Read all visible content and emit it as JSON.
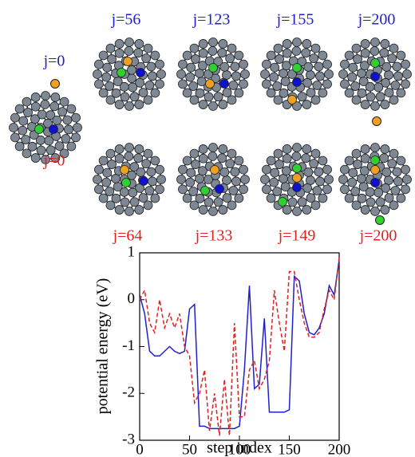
{
  "labels": {
    "top": [
      "j=0",
      "j=56",
      "j=123",
      "j=155",
      "j=200"
    ],
    "bottom": [
      "j=0",
      "j=64",
      "j=133",
      "j=149",
      "j=200"
    ]
  },
  "chart_data": {
    "type": "line",
    "xlabel": "step index",
    "ylabel": "potential energy (eV)",
    "x": [
      0,
      5,
      10,
      15,
      20,
      25,
      30,
      35,
      40,
      45,
      50,
      55,
      60,
      65,
      70,
      75,
      80,
      85,
      90,
      95,
      100,
      105,
      110,
      115,
      120,
      125,
      130,
      135,
      140,
      145,
      150,
      155,
      160,
      165,
      170,
      175,
      180,
      185,
      190,
      195,
      200
    ],
    "series": [
      {
        "color": "#1f1fd0",
        "dash": false,
        "values": [
          0.1,
          -0.3,
          -1.1,
          -1.2,
          -1.2,
          -1.1,
          -1.0,
          -1.1,
          -1.15,
          -1.1,
          -0.2,
          -0.1,
          -2.7,
          -2.7,
          -2.75,
          -2.75,
          -2.75,
          -2.75,
          -2.75,
          -2.75,
          -2.7,
          -1.5,
          0.3,
          -1.9,
          -1.8,
          -0.4,
          -2.4,
          -2.4,
          -2.4,
          -2.4,
          -2.35,
          0.5,
          0.4,
          -0.3,
          -0.7,
          -0.75,
          -0.6,
          -0.3,
          0.3,
          0.1,
          0.85
        ]
      },
      {
        "color": "#e02020",
        "dash": true,
        "values": [
          0,
          0.2,
          -0.5,
          -0.7,
          0.0,
          -0.6,
          -0.3,
          -0.6,
          -0.3,
          -1.0,
          -1.2,
          -2.2,
          -2.0,
          -1.5,
          -2.8,
          -2.0,
          -2.9,
          -1.7,
          -2.9,
          -0.5,
          -2.5,
          -2.5,
          -1.5,
          -1.3,
          -1.9,
          -1.7,
          -1.3,
          0.2,
          -0.5,
          -1.1,
          0.6,
          0.6,
          0.0,
          -0.5,
          -0.8,
          -0.8,
          -0.7,
          -0.2,
          0.2,
          0.0,
          0.9
        ]
      }
    ],
    "xlim": [
      0,
      200
    ],
    "ylim": [
      -3,
      1
    ],
    "xticks": [
      0,
      50,
      100,
      150,
      200
    ],
    "yticks": [
      -3,
      -2,
      -1,
      0,
      1
    ]
  }
}
